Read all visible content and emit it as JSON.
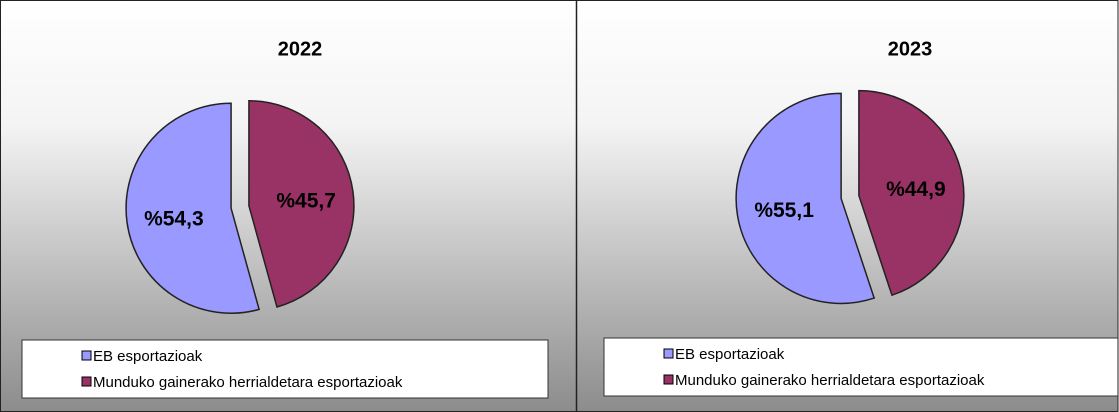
{
  "chart_data": [
    {
      "type": "pie",
      "title": "2022",
      "categories": [
        "EB esportazioak",
        "Munduko gainerako herrialdetara esportazioak"
      ],
      "values": [
        54.3,
        45.7
      ],
      "value_labels": [
        "%54,3",
        "%45,7"
      ],
      "colors": [
        "#9999ff",
        "#993366"
      ]
    },
    {
      "type": "pie",
      "title": "2023",
      "categories": [
        "EB esportazioak",
        "Munduko gainerako herrialdetara esportazioak"
      ],
      "values": [
        55.1,
        44.9
      ],
      "value_labels": [
        "%55,1",
        "%44,9"
      ],
      "colors": [
        "#9999ff",
        "#993366"
      ]
    }
  ]
}
